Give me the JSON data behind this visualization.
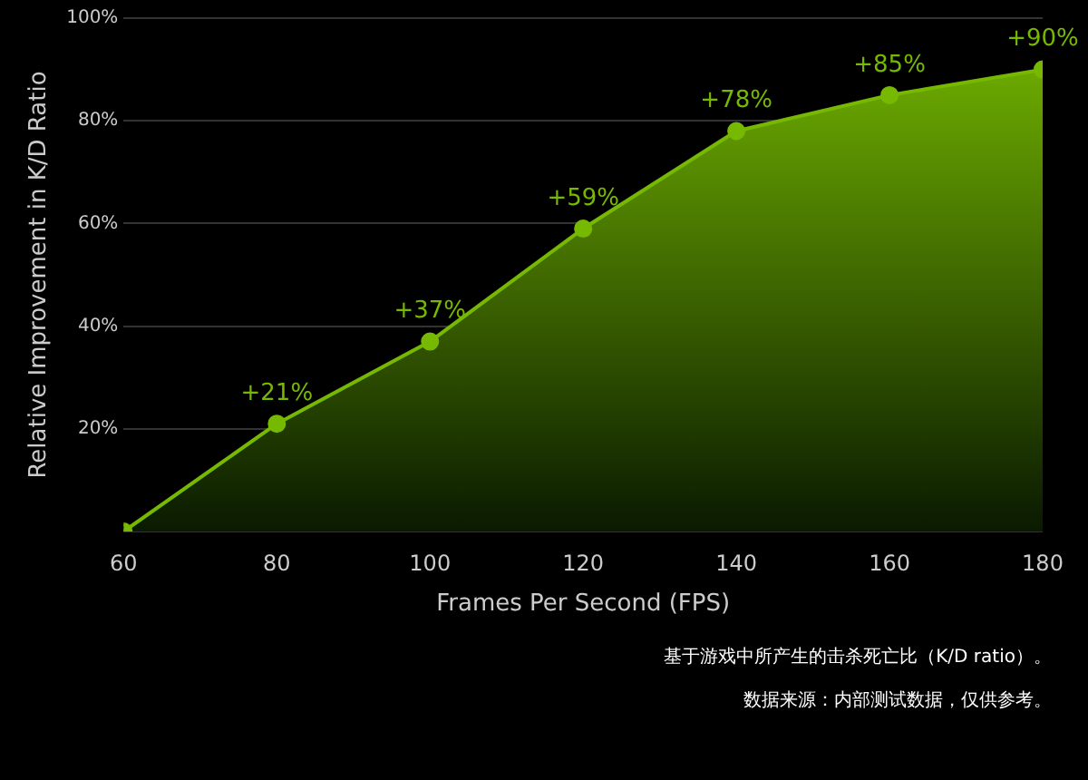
{
  "chart_data": {
    "type": "area",
    "xlabel": "Frames Per Second (FPS)",
    "ylabel": "Relative Improvement in K/D Ratio",
    "x": [
      60,
      80,
      100,
      120,
      140,
      160,
      180
    ],
    "values": [
      0,
      21,
      37,
      59,
      78,
      85,
      90
    ],
    "value_labels": [
      null,
      "+21%",
      "+37%",
      "+59%",
      "+78%",
      "+85%",
      "+90%"
    ],
    "color": "#76b900",
    "xlim": [
      60,
      180
    ],
    "xticks": [
      60,
      80,
      100,
      120,
      140,
      160,
      180
    ],
    "ylim": [
      0,
      100
    ],
    "yticks": [
      {
        "value": 0,
        "label": null
      },
      {
        "value": 20,
        "label": "20%"
      },
      {
        "value": 40,
        "label": "40%"
      },
      {
        "value": 60,
        "label": "60%"
      },
      {
        "value": 80,
        "label": "80%"
      },
      {
        "value": 100,
        "label": "100%"
      }
    ],
    "grid": "y",
    "marker": "circle",
    "annotations": [
      "基于游戏中所产生的击杀死亡比（K/D ratio）。",
      "数据来源：内部测试数据，仅供参考。"
    ]
  }
}
